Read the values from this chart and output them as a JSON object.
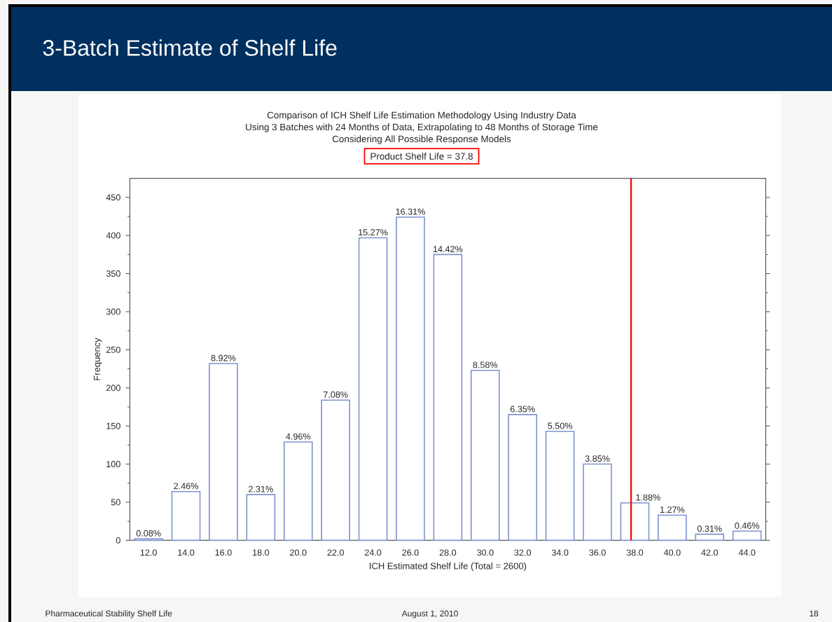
{
  "chart_data": {
    "type": "bar",
    "title": "3-Batch Estimate of Shelf Life",
    "subtitle": "Comparison of ICH Shelf Life Estimation Methodology Using Industry Data",
    "annotations": [
      "Using 3 Batches with 24 Months of Data, Extrapolating to 48 Months of Storage Time",
      "Considering All Possible Response Models",
      "Product Shelf Life = 37.8",
      "Pharmaceutical Stability Shelf Life",
      "August 1, 2010",
      "18",
      {
        "text": "0.08%",
        "x": 12,
        "y": 2
      },
      {
        "text": "2.46%",
        "x": 14,
        "y": 64
      },
      {
        "text": "8.92%",
        "x": 16,
        "y": 232
      },
      {
        "text": "2.31%",
        "x": 18,
        "y": 60
      },
      {
        "text": "4.96%",
        "x": 20,
        "y": 129
      },
      {
        "text": "7.08%",
        "x": 22,
        "y": 184
      },
      {
        "text": "15.27%",
        "x": 24,
        "y": 397
      },
      {
        "text": "16.31%",
        "x": 26,
        "y": 424
      },
      {
        "text": "14.42%",
        "x": 28,
        "y": 375
      },
      {
        "text": "8.58%",
        "x": 30,
        "y": 223
      },
      {
        "text": "6.35%",
        "x": 32,
        "y": 165
      },
      {
        "text": "5.50%",
        "x": 34,
        "y": 143
      },
      {
        "text": "3.85%",
        "x": 36,
        "y": 100
      },
      {
        "text": "1.88%",
        "x": 38,
        "y": 49
      },
      {
        "text": "1.27%",
        "x": 40,
        "y": 33
      },
      {
        "text": "0.31%",
        "x": 42,
        "y": 8
      },
      {
        "text": "0.46%",
        "x": 44,
        "y": 12
      }
    ],
    "xlabel": "ICH Estimated Shelf Life (Total = 2600)",
    "ylabel": "Frequency",
    "x": [
      12,
      14,
      16,
      18,
      20,
      22,
      24,
      26,
      28,
      30,
      32,
      34,
      36,
      38,
      40,
      42,
      44
    ],
    "values": [
      2,
      64,
      232,
      60,
      129,
      184,
      397,
      424,
      375,
      223,
      165,
      143,
      100,
      49,
      33,
      8,
      12
    ],
    "color": "#7f93cf",
    "xlim": [
      11,
      45
    ],
    "xticks": [
      {
        "value": 12,
        "label": "12.0"
      },
      {
        "value": 14,
        "label": "14.0"
      },
      {
        "value": 16,
        "label": "16.0"
      },
      {
        "value": 18,
        "label": "18.0"
      },
      {
        "value": 20,
        "label": "20.0"
      },
      {
        "value": 22,
        "label": "22.0"
      },
      {
        "value": 24,
        "label": "24.0"
      },
      {
        "value": 26,
        "label": "26.0"
      },
      {
        "value": 28,
        "label": "28.0"
      },
      {
        "value": 30,
        "label": "30.0"
      },
      {
        "value": 32,
        "label": "32.0"
      },
      {
        "value": 34,
        "label": "34.0"
      },
      {
        "value": 36,
        "label": "36.0"
      },
      {
        "value": 38,
        "label": "38.0"
      },
      {
        "value": 40,
        "label": "40.0"
      },
      {
        "value": 42,
        "label": "42.0"
      },
      {
        "value": 44,
        "label": "44.0"
      }
    ],
    "ylim": [
      0,
      475
    ],
    "yticks": [
      0,
      50,
      100,
      150,
      200,
      250,
      300,
      350,
      400,
      450
    ],
    "ref_lines": [
      {
        "axis": "x",
        "value": 37.8,
        "color": "#ff0000",
        "line_style": "solid"
      }
    ]
  }
}
